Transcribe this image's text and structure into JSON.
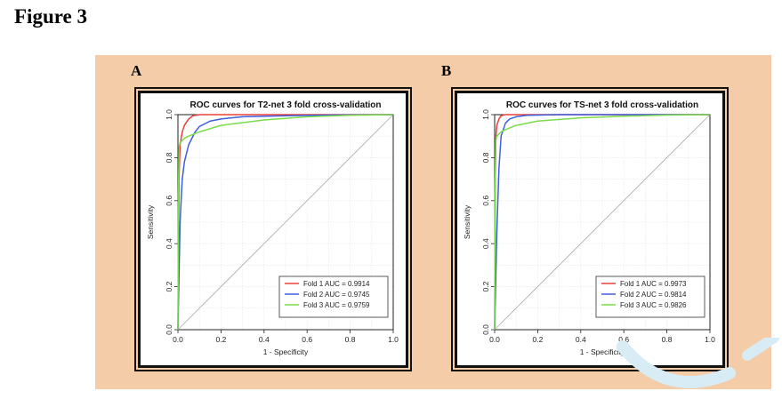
{
  "figure_title": "Figure 3",
  "chart_data": [
    {
      "panel": "A",
      "type": "line",
      "title": "ROC curves for T2-net 3 fold cross-validation",
      "xlabel": "1 - Specificity",
      "ylabel": "Sensitivity",
      "xlim": [
        0,
        1
      ],
      "ylim": [
        0,
        1
      ],
      "xticks": [
        "0.0",
        "0.2",
        "0.4",
        "0.6",
        "0.8",
        "1.0"
      ],
      "yticks": [
        "0.0",
        "0.2",
        "0.4",
        "0.6",
        "0.8",
        "1.0"
      ],
      "grid": true,
      "legend_position": "bottom-right",
      "diagonal_reference": true,
      "series": [
        {
          "name": "Fold 1 AUC = 0.9914",
          "color": "#e8423a",
          "x": [
            0,
            0.005,
            0.01,
            0.02,
            0.03,
            0.05,
            0.07,
            0.1,
            0.2,
            0.5,
            1.0
          ],
          "y": [
            0,
            0.7,
            0.86,
            0.92,
            0.95,
            0.98,
            0.995,
            1.0,
            1.0,
            1.0,
            1.0
          ]
        },
        {
          "name": "Fold 2 AUC = 0.9745",
          "color": "#3d5fe0",
          "x": [
            0,
            0.01,
            0.02,
            0.03,
            0.05,
            0.08,
            0.1,
            0.15,
            0.2,
            0.3,
            0.5,
            0.7,
            1.0
          ],
          "y": [
            0,
            0.5,
            0.7,
            0.78,
            0.86,
            0.92,
            0.945,
            0.97,
            0.98,
            0.99,
            0.995,
            0.998,
            1.0
          ]
        },
        {
          "name": "Fold 3 AUC = 0.9759",
          "color": "#7bdc4a",
          "x": [
            0,
            0.002,
            0.005,
            0.01,
            0.03,
            0.05,
            0.1,
            0.2,
            0.4,
            0.6,
            0.8,
            1.0
          ],
          "y": [
            0,
            0.6,
            0.85,
            0.87,
            0.89,
            0.9,
            0.92,
            0.95,
            0.975,
            0.99,
            0.997,
            1.0
          ]
        }
      ]
    },
    {
      "panel": "B",
      "type": "line",
      "title": "ROC curves for TS-net 3 fold cross-validation",
      "xlabel": "1 - Specificity",
      "ylabel": "Sensitivity",
      "xlim": [
        0,
        1
      ],
      "ylim": [
        0,
        1
      ],
      "xticks": [
        "0.0",
        "0.2",
        "0.4",
        "0.6",
        "0.8",
        "1.0"
      ],
      "yticks": [
        "0.0",
        "0.2",
        "0.4",
        "0.6",
        "0.8",
        "1.0"
      ],
      "grid": true,
      "legend_position": "bottom-right",
      "diagonal_reference": true,
      "series": [
        {
          "name": "Fold 1 AUC = 0.9973",
          "color": "#e8423a",
          "x": [
            0,
            0.003,
            0.006,
            0.01,
            0.02,
            0.03,
            0.05,
            0.1,
            1.0
          ],
          "y": [
            0,
            0.7,
            0.9,
            0.95,
            0.98,
            0.995,
            1.0,
            1.0,
            1.0
          ]
        },
        {
          "name": "Fold 2 AUC = 0.9814",
          "color": "#3d5fe0",
          "x": [
            0,
            0.01,
            0.02,
            0.03,
            0.05,
            0.07,
            0.1,
            0.15,
            0.3,
            1.0
          ],
          "y": [
            0,
            0.45,
            0.75,
            0.9,
            0.96,
            0.98,
            0.99,
            0.997,
            1.0,
            1.0
          ]
        },
        {
          "name": "Fold 3 AUC = 0.9826",
          "color": "#7bdc4a",
          "x": [
            0,
            0.002,
            0.005,
            0.01,
            0.03,
            0.05,
            0.1,
            0.2,
            0.4,
            0.6,
            0.8,
            1.0
          ],
          "y": [
            0,
            0.65,
            0.88,
            0.9,
            0.92,
            0.93,
            0.95,
            0.97,
            0.985,
            0.993,
            0.998,
            1.0
          ]
        }
      ]
    }
  ]
}
